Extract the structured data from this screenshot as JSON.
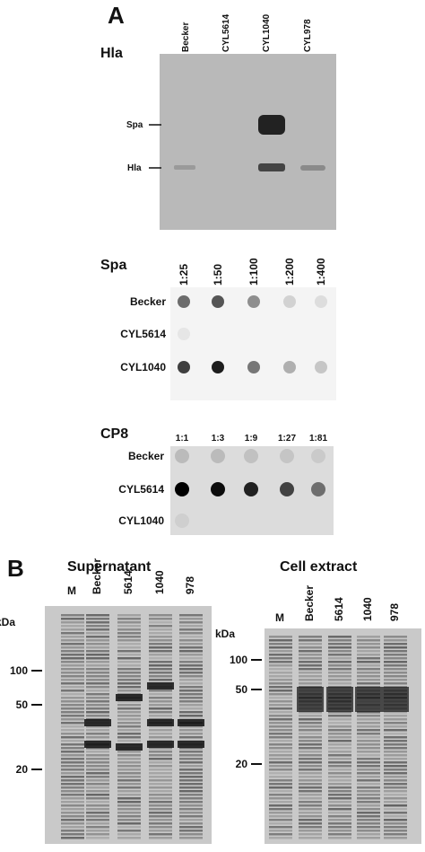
{
  "panel_a": {
    "label": "A",
    "hla_blot": {
      "title": "Hla",
      "lanes": [
        "Becker",
        "CYL5614",
        "CYL1040",
        "CYL978"
      ],
      "markers": [
        "Spa",
        "Hla"
      ]
    },
    "spa_blot": {
      "title": "Spa",
      "dilutions": [
        "1:25",
        "1:50",
        "1:100",
        "1:200",
        "1:400"
      ],
      "strains": [
        "Becker",
        "CYL5614",
        "CYL1040"
      ]
    },
    "cp8_blot": {
      "title": "CP8",
      "dilutions": [
        "1:1",
        "1:3",
        "1:9",
        "1:27",
        "1:81"
      ],
      "strains": [
        "Becker",
        "CYL5614",
        "CYL1040"
      ]
    }
  },
  "panel_b": {
    "label": "B",
    "supernatant": {
      "title": "Supernatant",
      "lanes": [
        "M",
        "Becker",
        "5614",
        "1040",
        "978"
      ],
      "unit": "kDa",
      "markers": [
        "100",
        "50",
        "20"
      ]
    },
    "cell_extract": {
      "title": "Cell extract",
      "lanes": [
        "M",
        "Becker",
        "5614",
        "1040",
        "978"
      ],
      "unit": "kDa",
      "markers": [
        "100",
        "50",
        "20"
      ]
    }
  }
}
